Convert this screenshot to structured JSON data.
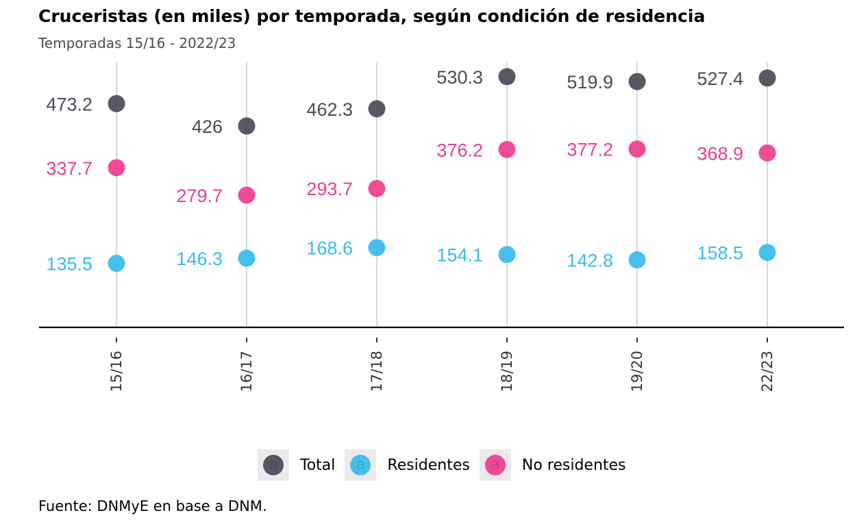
{
  "chart_data": {
    "type": "scatter",
    "title": "Cruceristas (en miles) por temporada, según condición de residencia",
    "subtitle": "Temporadas 15/16 - 2022/23",
    "caption": "Fuente: DNMyE en base a DNM.",
    "categories": [
      "15/16",
      "16/17",
      "17/18",
      "18/19",
      "19/20",
      "22/23"
    ],
    "series": [
      {
        "name": "Total",
        "color": "#4a4b57",
        "values": [
          473.2,
          426,
          462.3,
          530.3,
          519.9,
          527.4
        ]
      },
      {
        "name": "Residentes",
        "color": "#37bbed",
        "values": [
          135.5,
          146.3,
          168.6,
          154.1,
          142.8,
          158.5
        ]
      },
      {
        "name": "No residentes",
        "color": "#ee3d8f",
        "values": [
          337.7,
          279.7,
          293.7,
          376.2,
          377.2,
          368.9
        ]
      }
    ],
    "data_labels": [
      [
        "473.2",
        "426",
        "462.3",
        "530.3",
        "519.9",
        "527.4"
      ],
      [
        "135.5",
        "146.3",
        "168.6",
        "154.1",
        "142.8",
        "158.5"
      ],
      [
        "337.7",
        "279.7",
        "293.7",
        "376.2",
        "377.2",
        "368.9"
      ]
    ],
    "ylim": [
      0,
      562
    ],
    "grid": "vertical lines at each category",
    "legend_position": "bottom",
    "legend_glyph": "a",
    "x_tick_rotation": -90
  }
}
